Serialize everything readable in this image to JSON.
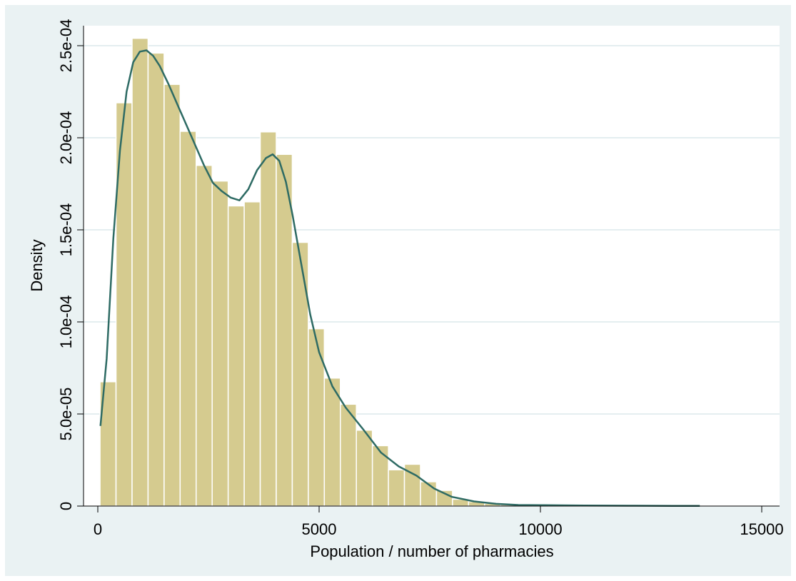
{
  "chart_data": {
    "type": "bar",
    "title": "",
    "xlabel": "Population / number of pharmacies",
    "ylabel": "Density",
    "xlim": [
      0,
      15000
    ],
    "ylim": [
      0,
      0.00026
    ],
    "x_ticks": [
      0,
      5000,
      10000,
      15000
    ],
    "x_tick_labels": [
      "0",
      "5000",
      "10000",
      "15000"
    ],
    "y_ticks": [
      0,
      5e-05,
      0.0001,
      0.00015,
      0.0002,
      0.00025
    ],
    "y_tick_labels": [
      "0",
      "5.0e-05",
      "1.0e-04",
      "1.5e-04",
      "2.0e-04",
      "2.5e-04"
    ],
    "grid": true,
    "colors": {
      "bar_fill": "#d5cb8f",
      "bar_edge": "#ffffff",
      "curve": "#2e6b64",
      "plot_bg": "#ffffff",
      "outer_bg": "#eaf2f3",
      "grid": "#e4eef0"
    },
    "histogram": {
      "bin_start": 50,
      "bin_width": 362,
      "densities": [
        6.75e-05,
        0.000219,
        0.000254,
        0.000246,
        0.000229,
        0.0002035,
        0.000185,
        0.0001765,
        0.000163,
        0.0001652,
        0.0002032,
        0.000191,
        0.0001432,
        9.63e-05,
        6.95e-05,
        5.53e-05,
        4.12e-05,
        3.28e-05,
        1.97e-05,
        2.27e-05,
        1.32e-05,
        8.5e-06,
        3.7e-06,
        2.4e-06,
        1.4e-06,
        8e-07,
        5e-07,
        4e-07,
        6e-07,
        4e-07,
        3e-07,
        2e-07,
        2e-07,
        2e-07,
        1e-07,
        1e-07,
        1e-07
      ]
    },
    "series": [
      {
        "type": "kdensity-line",
        "x": [
          60,
          200,
          350,
          500,
          650,
          800,
          950,
          1100,
          1250,
          1400,
          1600,
          1800,
          2000,
          2200,
          2400,
          2600,
          2800,
          3000,
          3200,
          3400,
          3600,
          3800,
          3950,
          4100,
          4250,
          4400,
          4600,
          4800,
          5000,
          5300,
          5600,
          6000,
          6400,
          6800,
          7200,
          7600,
          8000,
          8500,
          9000,
          9500,
          10000,
          10500,
          11000,
          12000,
          13000,
          13600
        ],
        "y": [
          4.35e-05,
          8e-05,
          0.000145,
          0.000193,
          0.000225,
          0.000241,
          0.0002468,
          0.0002475,
          0.0002445,
          0.000239,
          0.000229,
          0.000218,
          0.000207,
          0.000196,
          0.000185,
          0.0001755,
          0.000171,
          0.0001675,
          0.000166,
          0.000172,
          0.0001825,
          0.000189,
          0.000191,
          0.0001875,
          0.000176,
          0.000158,
          0.000131,
          0.000104,
          8.35e-05,
          6.5e-05,
          5.35e-05,
          4.15e-05,
          2.9e-05,
          2.15e-05,
          1.65e-05,
          9.5e-06,
          5e-06,
          2.5e-06,
          1.2e-06,
          6e-07,
          5e-07,
          4e-07,
          3e-07,
          2e-07,
          1e-07,
          1e-07
        ]
      }
    ]
  }
}
